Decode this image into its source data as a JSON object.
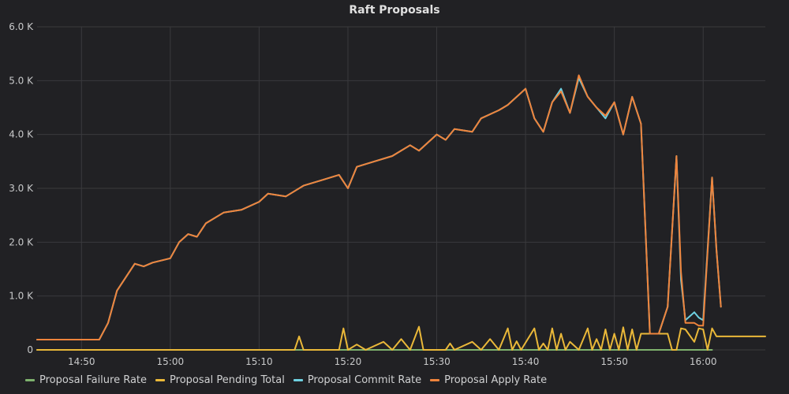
{
  "chart_data": {
    "type": "line",
    "title": "Raft Proposals",
    "xlabel": "",
    "ylabel": "",
    "x_axis": {
      "range": [
        "14:45",
        "16:07"
      ],
      "ticks": [
        "14:50",
        "15:00",
        "15:10",
        "15:20",
        "15:30",
        "15:40",
        "15:50",
        "16:00"
      ]
    },
    "y_axis": {
      "range": [
        0,
        6000
      ],
      "ticks": [
        0,
        1000,
        2000,
        3000,
        4000,
        5000,
        6000
      ],
      "tick_labels": [
        "0",
        "1.0 K",
        "2.0 K",
        "3.0 K",
        "4.0 K",
        "5.0 K",
        "6.0 K"
      ]
    },
    "grid": true,
    "legend_position": "bottom-left",
    "series": [
      {
        "name": "Proposal Failure Rate",
        "color": "#7eb26d",
        "points": [
          [
            "14:45",
            0
          ],
          [
            "15:30",
            0
          ],
          [
            "15:52",
            0
          ],
          [
            "15:53",
            0
          ],
          [
            "16:01",
            0
          ]
        ]
      },
      {
        "name": "Proposal Pending Total",
        "color": "#eab839",
        "points": [
          [
            "14:45",
            0
          ],
          [
            "15:14",
            0
          ],
          [
            "15:14.5",
            250
          ],
          [
            "15:15",
            0
          ],
          [
            "15:19",
            0
          ],
          [
            "15:19.5",
            400
          ],
          [
            "15:20",
            0
          ],
          [
            "15:21",
            100
          ],
          [
            "15:22",
            0
          ],
          [
            "15:24",
            150
          ],
          [
            "15:25",
            0
          ],
          [
            "15:26",
            200
          ],
          [
            "15:27",
            0
          ],
          [
            "15:28",
            430
          ],
          [
            "15:28.5",
            0
          ],
          [
            "15:31",
            0
          ],
          [
            "15:31.5",
            120
          ],
          [
            "15:32",
            0
          ],
          [
            "15:34",
            150
          ],
          [
            "15:35",
            0
          ],
          [
            "15:36",
            200
          ],
          [
            "15:37",
            0
          ],
          [
            "15:38",
            400
          ],
          [
            "15:38.5",
            0
          ],
          [
            "15:39",
            160
          ],
          [
            "15:39.5",
            0
          ],
          [
            "15:41",
            400
          ],
          [
            "15:41.5",
            0
          ],
          [
            "15:42",
            120
          ],
          [
            "15:42.5",
            0
          ],
          [
            "15:43",
            400
          ],
          [
            "15:43.5",
            0
          ],
          [
            "15:44",
            300
          ],
          [
            "15:44.5",
            0
          ],
          [
            "15:45",
            150
          ],
          [
            "15:46",
            0
          ],
          [
            "15:47",
            400
          ],
          [
            "15:47.5",
            0
          ],
          [
            "15:48",
            200
          ],
          [
            "15:48.5",
            0
          ],
          [
            "15:49",
            380
          ],
          [
            "15:49.5",
            0
          ],
          [
            "15:50",
            300
          ],
          [
            "15:50.5",
            0
          ],
          [
            "15:51",
            420
          ],
          [
            "15:51.5",
            0
          ],
          [
            "15:52",
            380
          ],
          [
            "15:52.5",
            0
          ],
          [
            "15:53",
            300
          ],
          [
            "15:54",
            300
          ],
          [
            "15:55",
            300
          ],
          [
            "15:56",
            300
          ],
          [
            "15:56.5",
            0
          ],
          [
            "15:57",
            0
          ],
          [
            "15:57.5",
            400
          ],
          [
            "15:58",
            380
          ],
          [
            "15:59",
            150
          ],
          [
            "15:59.5",
            400
          ],
          [
            "16:00",
            380
          ],
          [
            "16:00.5",
            0
          ],
          [
            "16:01",
            400
          ],
          [
            "16:01.5",
            250
          ],
          [
            "16:07",
            250
          ]
        ]
      },
      {
        "name": "Proposal Commit Rate",
        "color": "#6ed0e0",
        "points": [
          [
            "14:45",
            190
          ],
          [
            "14:52",
            190
          ],
          [
            "14:53",
            500
          ],
          [
            "14:54",
            1100
          ],
          [
            "14:56",
            1600
          ],
          [
            "14:57",
            1550
          ],
          [
            "14:58",
            1620
          ],
          [
            "15:00",
            1700
          ],
          [
            "15:01",
            2000
          ],
          [
            "15:02",
            2150
          ],
          [
            "15:03",
            2100
          ],
          [
            "15:04",
            2350
          ],
          [
            "15:06",
            2550
          ],
          [
            "15:08",
            2600
          ],
          [
            "15:10",
            2750
          ],
          [
            "15:11",
            2900
          ],
          [
            "15:13",
            2850
          ],
          [
            "15:15",
            3050
          ],
          [
            "15:17",
            3150
          ],
          [
            "15:19",
            3250
          ],
          [
            "15:20",
            3000
          ],
          [
            "15:21",
            3400
          ],
          [
            "15:23",
            3500
          ],
          [
            "15:25",
            3600
          ],
          [
            "15:27",
            3800
          ],
          [
            "15:28",
            3700
          ],
          [
            "15:30",
            4000
          ],
          [
            "15:31",
            3900
          ],
          [
            "15:32",
            4100
          ],
          [
            "15:34",
            4050
          ],
          [
            "15:35",
            4300
          ],
          [
            "15:37",
            4450
          ],
          [
            "15:38",
            4550
          ],
          [
            "15:40",
            4850
          ],
          [
            "15:41",
            4300
          ],
          [
            "15:42",
            4050
          ],
          [
            "15:43",
            4600
          ],
          [
            "15:44",
            4850
          ],
          [
            "15:45",
            4400
          ],
          [
            "15:46",
            5050
          ],
          [
            "15:47",
            4700
          ],
          [
            "15:48",
            4500
          ],
          [
            "15:49",
            4300
          ],
          [
            "15:50",
            4600
          ],
          [
            "15:51",
            4000
          ],
          [
            "15:52",
            4700
          ],
          [
            "15:53",
            4200
          ],
          [
            "15:54",
            300
          ],
          [
            "15:55",
            300
          ],
          [
            "15:56",
            800
          ],
          [
            "15:57",
            3600
          ],
          [
            "15:57.5",
            1300
          ],
          [
            "15:58",
            550
          ],
          [
            "15:59",
            700
          ],
          [
            "15:59.5",
            600
          ],
          [
            "16:00",
            550
          ],
          [
            "16:01",
            3200
          ],
          [
            "16:01.5",
            1850
          ],
          [
            "16:02",
            800
          ]
        ]
      },
      {
        "name": "Proposal Apply Rate",
        "color": "#ef843c",
        "points": [
          [
            "14:45",
            190
          ],
          [
            "14:52",
            190
          ],
          [
            "14:53",
            500
          ],
          [
            "14:54",
            1100
          ],
          [
            "14:56",
            1600
          ],
          [
            "14:57",
            1550
          ],
          [
            "14:58",
            1620
          ],
          [
            "15:00",
            1700
          ],
          [
            "15:01",
            2000
          ],
          [
            "15:02",
            2150
          ],
          [
            "15:03",
            2100
          ],
          [
            "15:04",
            2350
          ],
          [
            "15:06",
            2550
          ],
          [
            "15:08",
            2600
          ],
          [
            "15:10",
            2750
          ],
          [
            "15:11",
            2900
          ],
          [
            "15:13",
            2850
          ],
          [
            "15:15",
            3050
          ],
          [
            "15:17",
            3150
          ],
          [
            "15:19",
            3250
          ],
          [
            "15:20",
            3000
          ],
          [
            "15:21",
            3400
          ],
          [
            "15:23",
            3500
          ],
          [
            "15:25",
            3600
          ],
          [
            "15:27",
            3800
          ],
          [
            "15:28",
            3700
          ],
          [
            "15:30",
            4000
          ],
          [
            "15:31",
            3900
          ],
          [
            "15:32",
            4100
          ],
          [
            "15:34",
            4050
          ],
          [
            "15:35",
            4300
          ],
          [
            "15:37",
            4450
          ],
          [
            "15:38",
            4550
          ],
          [
            "15:40",
            4850
          ],
          [
            "15:41",
            4300
          ],
          [
            "15:42",
            4050
          ],
          [
            "15:43",
            4600
          ],
          [
            "15:44",
            4800
          ],
          [
            "15:45",
            4400
          ],
          [
            "15:46",
            5100
          ],
          [
            "15:47",
            4700
          ],
          [
            "15:48",
            4500
          ],
          [
            "15:49",
            4350
          ],
          [
            "15:50",
            4600
          ],
          [
            "15:51",
            4000
          ],
          [
            "15:52",
            4700
          ],
          [
            "15:53",
            4200
          ],
          [
            "15:54",
            300
          ],
          [
            "15:55",
            300
          ],
          [
            "15:56",
            800
          ],
          [
            "15:57",
            3600
          ],
          [
            "15:57.5",
            1450
          ],
          [
            "15:58",
            500
          ],
          [
            "15:59",
            500
          ],
          [
            "15:59.5",
            450
          ],
          [
            "16:00",
            450
          ],
          [
            "16:01",
            3200
          ],
          [
            "16:01.5",
            1850
          ],
          [
            "16:02",
            800
          ]
        ]
      }
    ]
  }
}
